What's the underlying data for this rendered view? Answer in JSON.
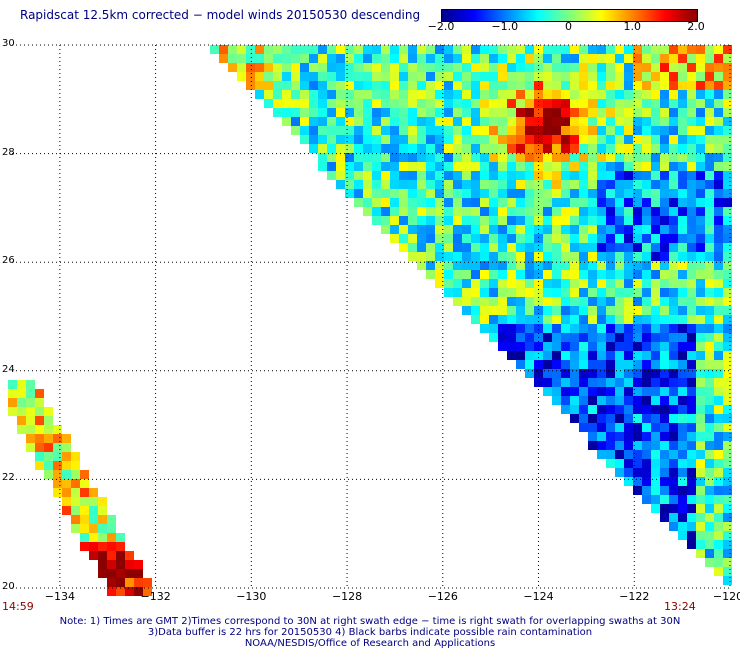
{
  "title": "Rapidscat 12.5km corrected − model winds 20150530 descending",
  "colorbar": {
    "ticks": [
      {
        "label": "−2.0",
        "value": -2.0
      },
      {
        "label": "−1.0",
        "value": -1.0
      },
      {
        "label": "0",
        "value": 0
      },
      {
        "label": "1.0",
        "value": 1.0
      },
      {
        "label": "2.0",
        "value": 2.0
      }
    ],
    "min": -2.0,
    "max": 2.0,
    "colors": [
      "#00008b",
      "#0000ff",
      "#0080ff",
      "#00ffff",
      "#80ff80",
      "#ffff00",
      "#ff8000",
      "#ff0000",
      "#8b0000"
    ]
  },
  "map": {
    "lat_range": [
      20,
      30
    ],
    "lon_range": [
      -135,
      -120
    ],
    "lat_labels": [
      "30",
      "28",
      "26",
      "24",
      "22",
      "20"
    ],
    "lon_labels": [
      "−134",
      "−132",
      "−130",
      "−128",
      "−126",
      "−124",
      "−122",
      "−120"
    ],
    "grid_color": "#000000"
  },
  "times": {
    "left": "14:59",
    "right": "13:24"
  },
  "footer": {
    "line1": "Note: 1) Times are GMT 2)Times correspond to 30N at right swath edge − time is right swath for overlapping swaths at 30N",
    "line2": "3)Data buffer is 22 hrs for 20150530 4) Black barbs indicate possible rain contamination",
    "line3": "NOAA/NESDIS/Office of Research and Applications"
  }
}
